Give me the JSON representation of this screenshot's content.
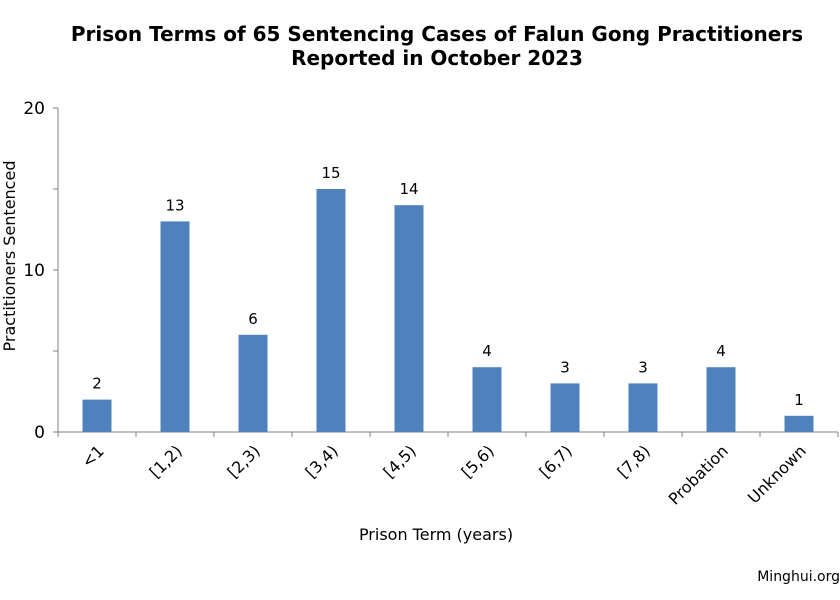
{
  "title_lines": [
    "Prison Terms of 65 Sentencing Cases of Falun Gong Practitioners",
    "Reported in October 2023"
  ],
  "credit": "Minghui.org",
  "colors": {
    "bar": "#4f81bd",
    "axis": "#808080"
  },
  "chart_data": {
    "type": "bar",
    "title": "Prison Terms of 65 Sentencing Cases of Falun Gong Practitioners Reported in October 2023",
    "xlabel": "Prison Term (years)",
    "ylabel": "Practitioners Sentenced",
    "categories": [
      "<1",
      "[1,2)",
      "[2,3)",
      "[3,4)",
      "[4,5)",
      "[5,6)",
      "[6,7)",
      "[7,8)",
      "Probation",
      "Unknown"
    ],
    "values": [
      2,
      13,
      6,
      15,
      14,
      4,
      3,
      3,
      4,
      1
    ],
    "ylim": [
      0,
      20
    ],
    "yticks": [
      0,
      10,
      20
    ],
    "grid": false,
    "data_labels": true,
    "legend": "none"
  }
}
